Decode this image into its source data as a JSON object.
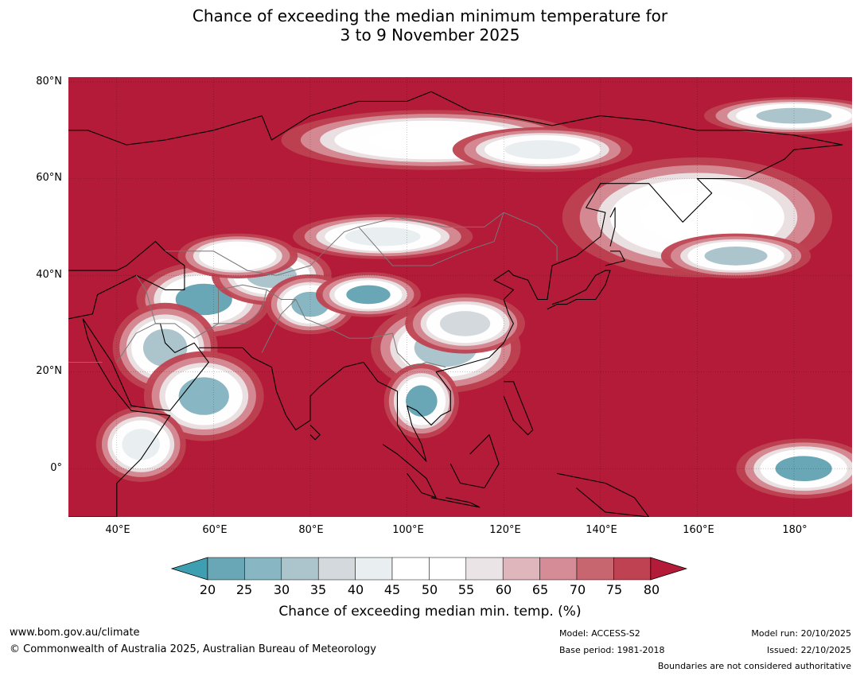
{
  "title": {
    "line1": "Chance of exceeding the median minimum temperature for",
    "line2": "3 to 9 November 2025"
  },
  "map": {
    "lat_labels": [
      "80°N",
      "60°N",
      "40°N",
      "20°N",
      "0°"
    ],
    "lon_labels": [
      "40°E",
      "60°E",
      "80°E",
      "100°E",
      "120°E",
      "140°E",
      "160°E",
      "180°"
    ],
    "lon_range": [
      30,
      192
    ],
    "lat_range": [
      -10,
      81
    ],
    "background_color": "#b31b39",
    "blobs": [
      {
        "lon": 58,
        "lat": 35,
        "rlon": 9,
        "rlat": 5,
        "level": 20
      },
      {
        "lon": 72,
        "lat": 40,
        "rlon": 8,
        "rlat": 4,
        "level": 30
      },
      {
        "lon": 80,
        "lat": 34,
        "rlon": 6,
        "rlat": 4,
        "level": 25
      },
      {
        "lon": 92,
        "lat": 36,
        "rlon": 7,
        "rlat": 3,
        "level": 20
      },
      {
        "lon": 50,
        "lat": 25,
        "rlon": 7,
        "rlat": 6,
        "level": 30
      },
      {
        "lon": 58,
        "lat": 15,
        "rlon": 8,
        "rlat": 6,
        "level": 25
      },
      {
        "lon": 45,
        "lat": 5,
        "rlon": 6,
        "rlat": 5,
        "level": 40
      },
      {
        "lon": 108,
        "lat": 25,
        "rlon": 10,
        "rlat": 6,
        "level": 30
      },
      {
        "lon": 103,
        "lat": 14,
        "rlon": 5,
        "rlat": 5,
        "level": 20
      },
      {
        "lon": 112,
        "lat": 30,
        "rlon": 8,
        "rlat": 4,
        "level": 35
      },
      {
        "lon": 105,
        "lat": 68,
        "rlon": 20,
        "rlat": 4,
        "level": 45
      },
      {
        "lon": 128,
        "lat": 66,
        "rlon": 12,
        "rlat": 3,
        "level": 40
      },
      {
        "lon": 160,
        "lat": 52,
        "rlon": 18,
        "rlat": 8,
        "level": 45
      },
      {
        "lon": 168,
        "lat": 44,
        "rlon": 10,
        "rlat": 3,
        "level": 30
      },
      {
        "lon": 180,
        "lat": 73,
        "rlon": 12,
        "rlat": 2.5,
        "level": 30
      },
      {
        "lon": 182,
        "lat": 0,
        "rlon": 9,
        "rlat": 4,
        "level": 20
      },
      {
        "lon": 95,
        "lat": 48,
        "rlon": 12,
        "rlat": 3,
        "level": 40
      },
      {
        "lon": 65,
        "lat": 44,
        "rlon": 8,
        "rlat": 3,
        "level": 45
      }
    ]
  },
  "colorbar": {
    "ticks": [
      "20",
      "25",
      "30",
      "35",
      "40",
      "45",
      "50",
      "55",
      "60",
      "65",
      "70",
      "75",
      "80"
    ],
    "colors": [
      "#3f9fb2",
      "#6aa7b6",
      "#88b7c3",
      "#acc5cc",
      "#d3d9dc",
      "#e9eef1",
      "#ffffff",
      "#ffffff",
      "#ebe4e6",
      "#e0b6bd",
      "#d58c96",
      "#c8666f",
      "#be4251",
      "#b31b39"
    ],
    "label": "Chance of exceeding median min. temp. (%)"
  },
  "footer": {
    "url": "www.bom.gov.au/climate",
    "copyright": "© Commonwealth of Australia 2025, Australian Bureau of Meteorology",
    "model": "Model: ACCESS-S2",
    "base_period": "Base period: 1981-2018",
    "model_run": "Model run: 20/10/2025",
    "issued": "Issued: 22/10/2025",
    "boundaries": "Boundaries are not considered authoritative"
  }
}
